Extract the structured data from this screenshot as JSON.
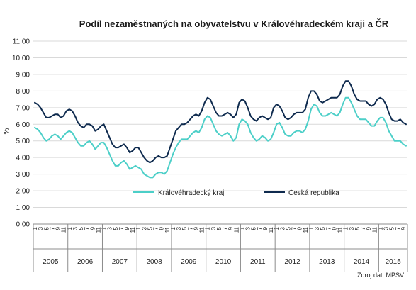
{
  "chart_data": {
    "type": "line",
    "title": "Podíl nezaměstnaných  na obyvatelstvu  v Královéhradeckém  kraji a ČR",
    "ylabel": "%",
    "xlabel": "",
    "ylim": [
      0,
      11
    ],
    "ytick_labels": [
      "0,00",
      "1,00",
      "2,00",
      "3,00",
      "4,00",
      "5,00",
      "6,00",
      "7,00",
      "8,00",
      "9,00",
      "10,00",
      "11,00"
    ],
    "grid": true,
    "legend_position": "bottom-center",
    "month_tick_labels": [
      "1",
      "3",
      "5",
      "7",
      "9",
      "11"
    ],
    "years": [
      "2005",
      "2006",
      "2007",
      "2008",
      "2009",
      "2010",
      "2011",
      "2012",
      "2013",
      "2014",
      "2015"
    ],
    "source": "Zdroj dat: MPSV",
    "series": [
      {
        "name": "Královéhradecký kraj",
        "color": "#4ccfc8",
        "values": [
          5.8,
          5.7,
          5.5,
          5.2,
          5.0,
          5.1,
          5.3,
          5.4,
          5.3,
          5.1,
          5.3,
          5.5,
          5.6,
          5.5,
          5.2,
          4.9,
          4.7,
          4.7,
          4.9,
          5.0,
          4.8,
          4.5,
          4.7,
          4.9,
          4.9,
          4.6,
          4.2,
          3.8,
          3.5,
          3.5,
          3.7,
          3.8,
          3.6,
          3.3,
          3.4,
          3.5,
          3.4,
          3.3,
          3.0,
          2.9,
          2.8,
          2.8,
          3.0,
          3.1,
          3.1,
          3.0,
          3.2,
          3.7,
          4.2,
          4.6,
          4.9,
          5.1,
          5.1,
          5.1,
          5.3,
          5.5,
          5.6,
          5.5,
          5.8,
          6.3,
          6.5,
          6.4,
          6.0,
          5.6,
          5.4,
          5.3,
          5.4,
          5.5,
          5.3,
          5.0,
          5.2,
          6.0,
          6.3,
          6.2,
          6.0,
          5.5,
          5.2,
          5.0,
          5.1,
          5.3,
          5.2,
          5.0,
          5.1,
          5.5,
          6.0,
          6.1,
          5.8,
          5.4,
          5.3,
          5.3,
          5.5,
          5.6,
          5.6,
          5.5,
          5.7,
          6.2,
          6.9,
          7.2,
          7.1,
          6.7,
          6.5,
          6.5,
          6.6,
          6.7,
          6.6,
          6.5,
          6.7,
          7.2,
          7.6,
          7.6,
          7.3,
          6.9,
          6.5,
          6.3,
          6.3,
          6.3,
          6.1,
          5.9,
          5.9,
          6.2,
          6.4,
          6.4,
          6.1,
          5.6,
          5.3,
          5.0,
          5.0,
          5.0,
          4.8,
          4.7
        ]
      },
      {
        "name": "Česká republika",
        "color": "#0e2a4e",
        "values": [
          7.3,
          7.2,
          7.0,
          6.7,
          6.4,
          6.4,
          6.5,
          6.6,
          6.6,
          6.4,
          6.5,
          6.8,
          6.9,
          6.8,
          6.5,
          6.1,
          5.9,
          5.8,
          6.0,
          6.0,
          5.9,
          5.6,
          5.7,
          5.9,
          6.0,
          5.6,
          5.2,
          4.8,
          4.6,
          4.6,
          4.7,
          4.8,
          4.6,
          4.3,
          4.4,
          4.6,
          4.6,
          4.3,
          4.0,
          3.8,
          3.7,
          3.8,
          4.0,
          4.1,
          4.0,
          4.0,
          4.1,
          4.6,
          5.1,
          5.6,
          5.8,
          6.0,
          6.0,
          6.1,
          6.3,
          6.5,
          6.6,
          6.5,
          6.8,
          7.3,
          7.6,
          7.5,
          7.1,
          6.7,
          6.5,
          6.5,
          6.6,
          6.7,
          6.6,
          6.4,
          6.6,
          7.3,
          7.5,
          7.4,
          7.0,
          6.5,
          6.3,
          6.2,
          6.4,
          6.5,
          6.4,
          6.3,
          6.4,
          7.0,
          7.2,
          7.1,
          6.8,
          6.4,
          6.3,
          6.4,
          6.6,
          6.7,
          6.7,
          6.7,
          6.9,
          7.6,
          8.0,
          8.0,
          7.8,
          7.4,
          7.3,
          7.4,
          7.5,
          7.6,
          7.6,
          7.6,
          7.8,
          8.3,
          8.6,
          8.6,
          8.3,
          7.8,
          7.5,
          7.4,
          7.4,
          7.4,
          7.2,
          7.1,
          7.2,
          7.5,
          7.6,
          7.5,
          7.2,
          6.7,
          6.3,
          6.2,
          6.2,
          6.3,
          6.1,
          6.0
        ]
      }
    ]
  }
}
